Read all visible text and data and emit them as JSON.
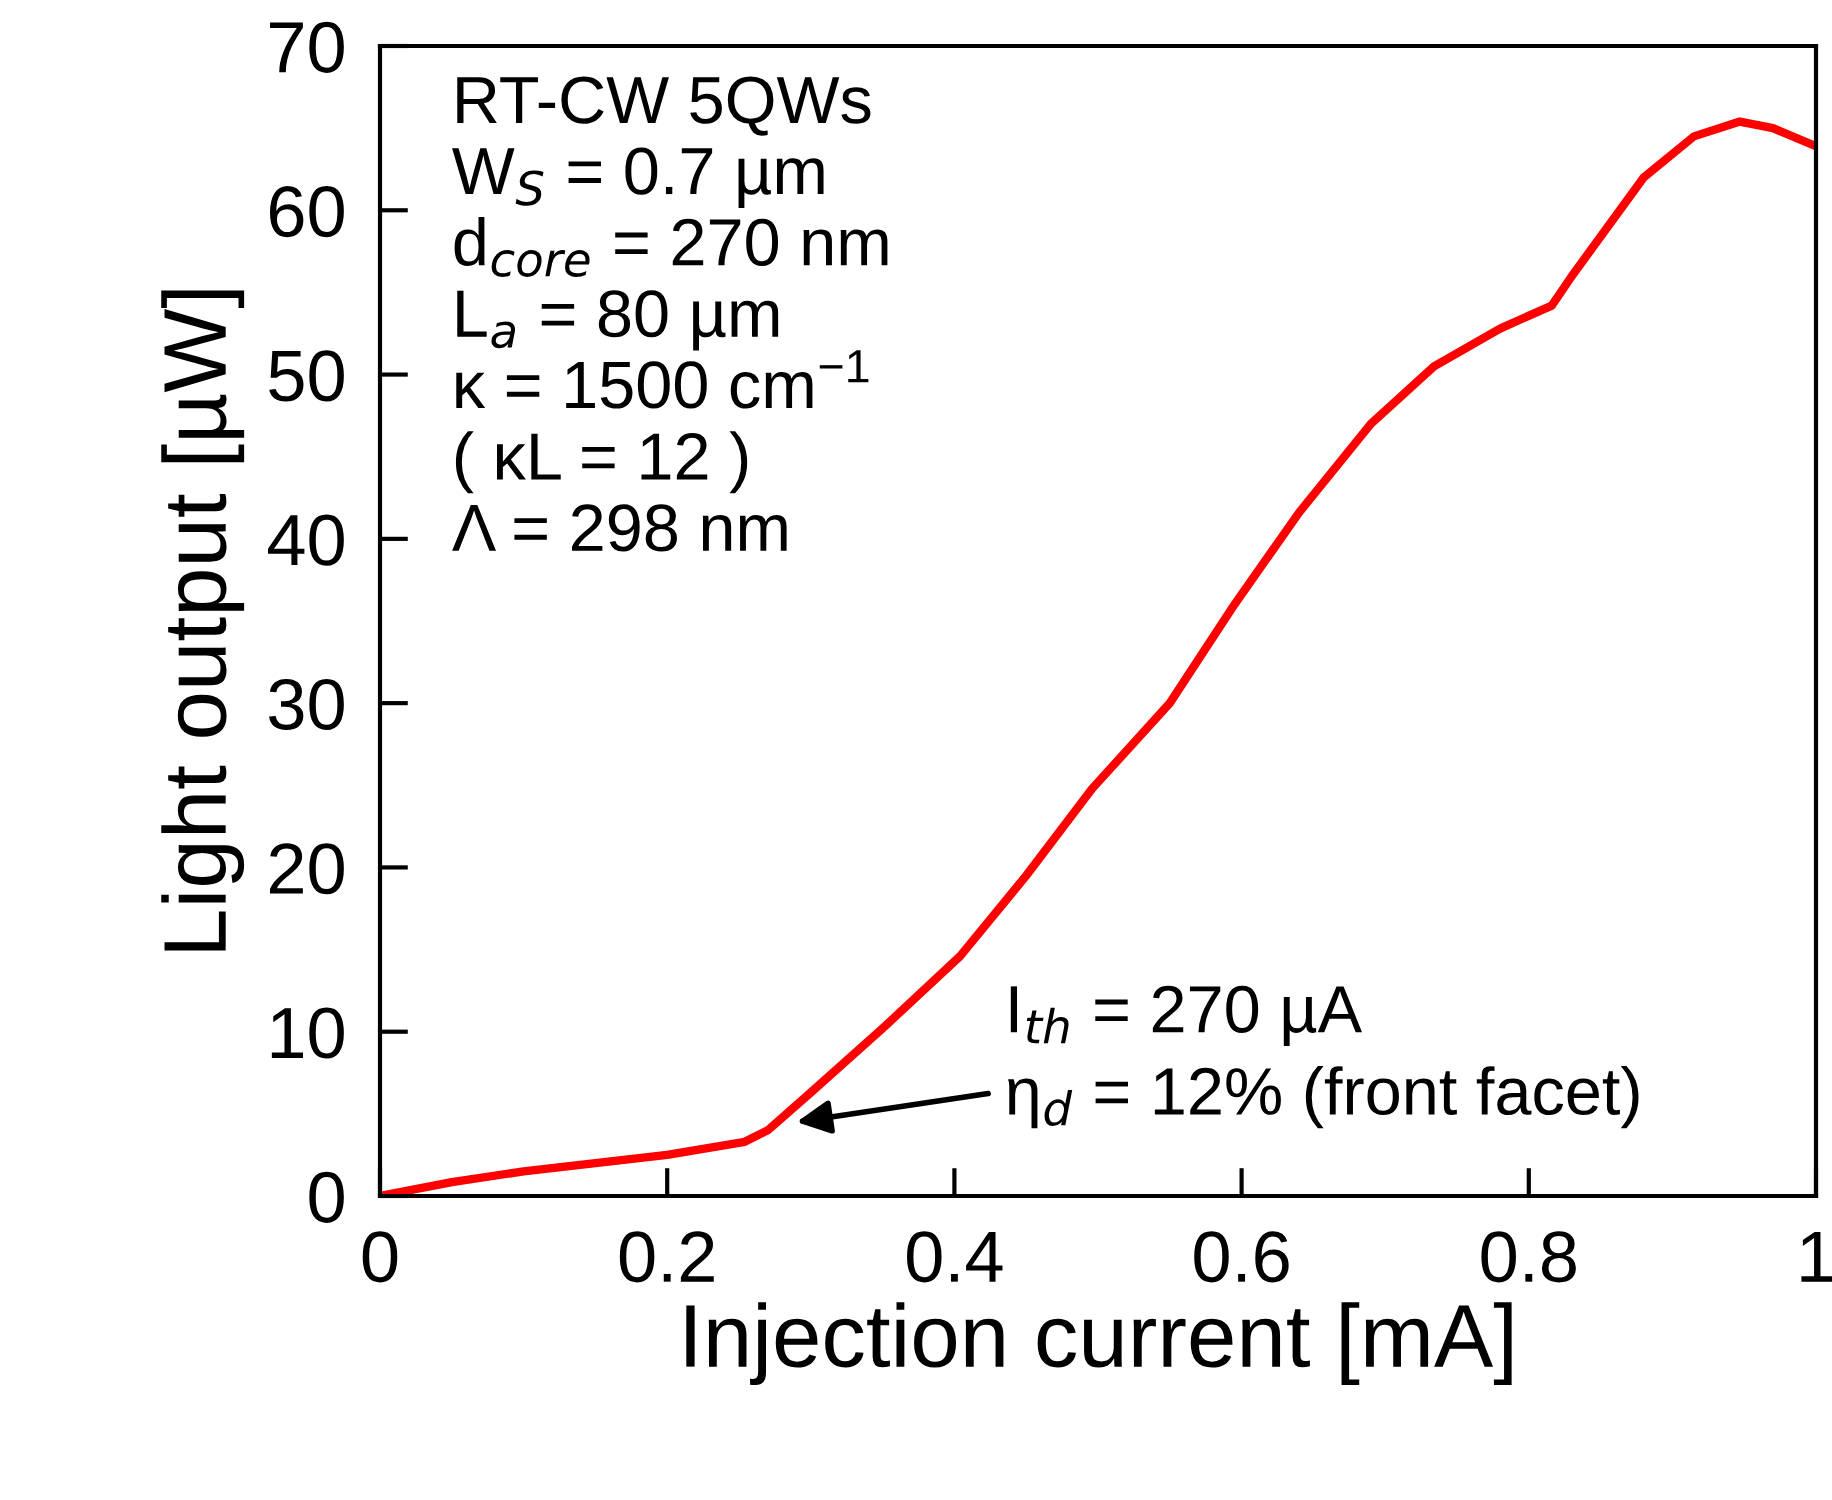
{
  "chart_data": {
    "type": "line",
    "xlabel": "Injection current [mA]",
    "ylabel": "Light output [µW]",
    "xlim": [
      0,
      1
    ],
    "ylim": [
      0,
      70
    ],
    "xticks": [
      0,
      0.2,
      0.4,
      0.6,
      0.8,
      1
    ],
    "yticks": [
      0,
      10,
      20,
      30,
      40,
      50,
      60,
      70
    ],
    "grid": false,
    "legend": false,
    "marker": "none",
    "line_style": "solid",
    "series": [
      {
        "color": "#ff0000",
        "x": [
          0,
          0.05,
          0.1,
          0.15,
          0.2,
          0.254,
          0.27,
          0.3,
          0.35,
          0.404,
          0.45,
          0.496,
          0.55,
          0.595,
          0.64,
          0.69,
          0.734,
          0.78,
          0.816,
          0.83,
          0.855,
          0.88,
          0.915,
          0.947,
          0.97,
          1
        ],
        "values": [
          0,
          0.85,
          1.5,
          2.0,
          2.5,
          3.3,
          4.0,
          6.3,
          10.2,
          14.6,
          19.5,
          24.8,
          30,
          36,
          41.6,
          47,
          50.5,
          52.8,
          54.2,
          56,
          59,
          62,
          64.5,
          65.4,
          65,
          63.9
        ]
      }
    ],
    "annotations": [
      "RT-CW 5QWs",
      "W$_{S}$ = 0.7 µm",
      "d$_{core}$ = 270 nm",
      "L$_{a}$ = 80 µm",
      "κ = 1500 cm$^{−1}$",
      "( κL = 12 )",
      "Λ = 298 nm",
      "I$_{th}$ = 270 µA",
      {
        "text": "η$_{d}$ = 12% (front facet)",
        "x": 0.29,
        "y": 4.5
      }
    ]
  }
}
